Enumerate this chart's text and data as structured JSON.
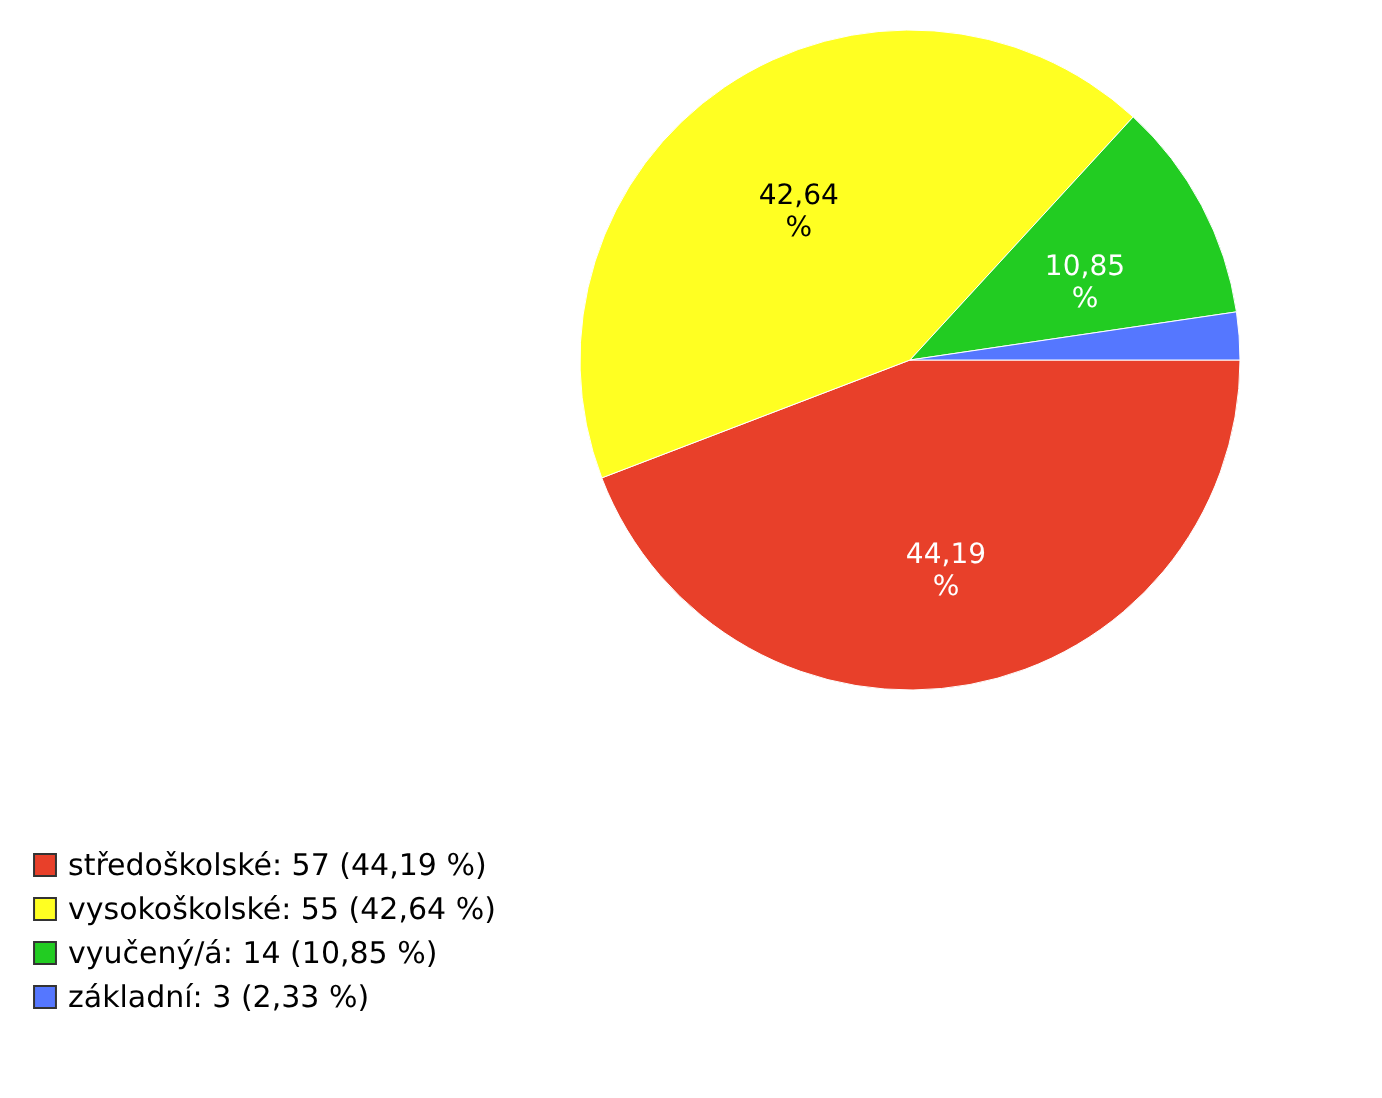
{
  "chart_data": {
    "type": "pie",
    "categories": [
      "středoškolské: 57 (44,19 %)",
      "vysokoškolské: 55 (42,64 %)",
      "vyučený/á: 14 (10,85 %)",
      "základní: 3 (2,33 %)"
    ],
    "values": [
      44.19,
      42.64,
      10.85,
      2.33
    ],
    "colors": [
      "#e8402a",
      "#ffff22",
      "#22cc22",
      "#5577ff"
    ],
    "value_labels": [
      "44,19 %",
      "42,64 %",
      "10,85 %",
      null
    ],
    "legend": "bottom left"
  }
}
